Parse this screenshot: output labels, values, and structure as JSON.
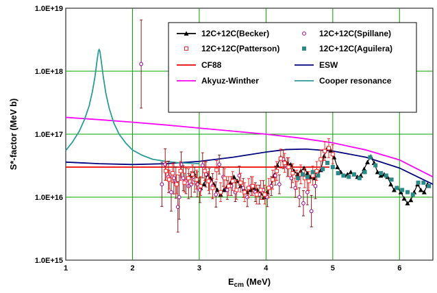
{
  "chart_data": {
    "type": "scatter",
    "xlabel_main": "E",
    "xlabel_sub": "cm",
    "xlabel_tail": " (MeV)",
    "ylabel": "S*-factor (MeV b)",
    "xlim": [
      1,
      6.5
    ],
    "ylim": [
      1000000000000000.0,
      1e+19
    ],
    "y_scale": "log",
    "grid": true,
    "legend_position": "top-right",
    "x_ticks": [
      "1",
      "2",
      "3",
      "4",
      "5",
      "6"
    ],
    "y_ticks": [
      "1.0E+15",
      "1.0E+16",
      "1.0E+17",
      "1.0E+18",
      "1.0E+19"
    ],
    "colors": {
      "becker": "#000000",
      "spillane": "#990099",
      "patterson": "#ff2222",
      "aguilera": "#2a8a8a",
      "cf88": "#ee0000",
      "esw": "#00007f",
      "akyuz": "#ff00ff",
      "cooper": "#2a9a9a",
      "grid": "#00a000"
    },
    "series": [
      {
        "name": "12C+12C(Becker)",
        "kind": "line-markers",
        "color_key": "becker",
        "marker": "triangle",
        "x": [
          2.87,
          2.92,
          2.97,
          3.02,
          3.07,
          3.12,
          3.17,
          3.22,
          3.27,
          3.32,
          3.37,
          3.42,
          3.47,
          3.52,
          3.57,
          3.62,
          3.67,
          3.72,
          3.77,
          3.82,
          3.87,
          3.92,
          3.97,
          4.02,
          4.07,
          4.12,
          4.17,
          4.22,
          4.27,
          4.32,
          4.37,
          4.42,
          4.47,
          4.52,
          4.57,
          4.62,
          4.67,
          4.72,
          4.77,
          4.82,
          4.87,
          4.92,
          4.97,
          5.02,
          5.07,
          5.12,
          5.17,
          5.22,
          5.27,
          5.32,
          5.37,
          5.42,
          5.47,
          5.52,
          5.57,
          5.62,
          5.67,
          5.72,
          5.77,
          5.82,
          5.87,
          5.92,
          5.97,
          6.02,
          6.07,
          6.12,
          6.17,
          6.22,
          6.27,
          6.32,
          6.37,
          6.42
        ],
        "y": [
          2.2e+16,
          2.4e+16,
          1.9e+16,
          1.4e+16,
          1.6e+16,
          2.3e+16,
          2e+16,
          1.6e+16,
          1.3e+16,
          1.1e+16,
          1.3e+16,
          1.5e+16,
          1.7e+16,
          2.1e+16,
          1.8e+16,
          1.5e+16,
          1.35e+16,
          1.2e+16,
          1.3e+16,
          1.4e+16,
          1.3e+16,
          1.15e+16,
          1e+16,
          1.2e+16,
          1.5e+16,
          2.2e+16,
          3.2e+16,
          4.3e+16,
          3.9e+16,
          3.5e+16,
          3.3e+16,
          2.6e+16,
          2.3e+16,
          2.6e+16,
          2.9e+16,
          2.4e+16,
          2.1e+16,
          2e+16,
          2.2e+16,
          2.7e+16,
          4.5e+16,
          6e+16,
          5.5e+16,
          4.3e+16,
          3e+16,
          2.5e+16,
          2.2e+16,
          2.3e+16,
          2.5e+16,
          2.3e+16,
          2.1e+16,
          2.2e+16,
          2.8e+16,
          3.6e+16,
          4.4e+16,
          3.5e+16,
          2.5e+16,
          2.2e+16,
          2.3e+16,
          2.1e+16,
          1.6e+16,
          1.3e+16,
          1.4e+16,
          1.2e+16,
          9500000000000000.0,
          8000000000000000.0,
          9000000000000000.0,
          1.2e+16,
          1.6e+16,
          1.3e+16,
          1.2e+16,
          1.6e+16
        ]
      },
      {
        "name": "12C+12C(Spillane)",
        "kind": "markers-errorbars",
        "color_key": "spillane",
        "marker": "circle",
        "x": [
          2.13,
          2.44,
          2.49,
          2.54,
          2.58,
          2.62,
          2.65,
          2.68,
          2.7,
          2.73,
          2.76,
          2.8,
          2.84,
          2.88,
          2.93,
          2.97,
          3.01,
          3.05,
          3.1,
          3.15,
          3.2,
          3.25,
          3.3,
          3.36,
          3.42,
          3.48,
          3.54,
          3.6,
          3.66,
          3.72,
          3.78,
          3.84,
          3.9,
          3.96,
          4.02,
          4.08,
          4.14,
          4.2,
          4.26,
          4.32,
          4.38,
          4.44,
          4.5,
          4.56,
          4.62,
          4.68,
          4.74
        ],
        "y": [
          1.3e+18,
          1.6e+16,
          3.3e+16,
          2.1e+16,
          1.2e+16,
          2e+16,
          1.7e+16,
          7000000000000000.0,
          1e+16,
          3.3e+16,
          2e+16,
          1.8e+16,
          1.5e+16,
          1.6e+16,
          1.9e+16,
          1.6e+16,
          1.3e+16,
          3.2e+16,
          2.3e+16,
          1.8e+16,
          1.5e+16,
          1.1e+16,
          3.3e+16,
          2.1e+16,
          1.3e+16,
          1.5e+16,
          1.2e+16,
          2.2e+16,
          1.4e+16,
          1e+16,
          1.5e+16,
          1.2e+16,
          1.1e+16,
          1.3e+16,
          1e+16,
          1.5e+16,
          2.2e+16,
          1.6e+16,
          4e+16,
          3e+16,
          2e+16,
          1.4e+16,
          1e+16,
          8000000000000000.0,
          1.2e+16,
          6000000000000000.0,
          1.5e+16
        ],
        "errors": [
          0.7,
          0.35,
          0.25,
          0.25,
          0.3,
          0.25,
          0.25,
          0.4,
          0.35,
          0.2,
          0.2,
          0.2,
          0.2,
          0.2,
          0.2,
          0.2,
          0.2,
          0.2,
          0.2,
          0.2,
          0.2,
          0.2,
          0.15,
          0.15,
          0.15,
          0.15,
          0.15,
          0.15,
          0.15,
          0.15,
          0.15,
          0.15,
          0.15,
          0.15,
          0.15,
          0.15,
          0.15,
          0.15,
          0.15,
          0.15,
          0.15,
          0.15,
          0.15,
          0.2,
          0.2,
          0.25,
          0.2
        ]
      },
      {
        "name": "12C+12C(Patterson)",
        "kind": "markers-errorbars",
        "color_key": "patterson",
        "marker": "square-open",
        "x": [
          2.5,
          2.55,
          2.6,
          2.66,
          2.72,
          2.78,
          2.84,
          2.9,
          2.96,
          3.02,
          3.08,
          3.14,
          3.2,
          3.26,
          3.32,
          3.38,
          3.44,
          3.5,
          3.56,
          3.62,
          3.68,
          3.74,
          3.8,
          3.86,
          3.92,
          3.98,
          4.04,
          4.1,
          4.16,
          4.22,
          4.28,
          4.34,
          4.4,
          4.46,
          4.52,
          4.58,
          4.64,
          4.7,
          4.76,
          4.82,
          4.88,
          4.94,
          5.0
        ],
        "y": [
          2.6e+16,
          1.9e+16,
          2.4e+16,
          1.6e+16,
          2.6e+16,
          1.7e+16,
          2e+16,
          2.3e+16,
          1.9e+16,
          1.5e+16,
          2.6e+16,
          1.8e+16,
          1.4e+16,
          2.7e+16,
          1.2e+16,
          2e+16,
          1.5e+16,
          1.8e+16,
          1.3e+16,
          1.7e+16,
          1.2e+16,
          1.4e+16,
          1.5e+16,
          1.1e+16,
          1.3e+16,
          1.1e+16,
          1.4e+16,
          1.9e+16,
          2.6e+16,
          4.1e+16,
          3.5e+16,
          3e+16,
          2.4e+16,
          1.9e+16,
          2.3e+16,
          2e+16,
          1.8e+16,
          2.2e+16,
          2.6e+16,
          4e+16,
          5.4e+16,
          6e+16,
          4.8e+16
        ],
        "errors": [
          0.15,
          0.15,
          0.15,
          0.15,
          0.15,
          0.15,
          0.15,
          0.15,
          0.15,
          0.15,
          0.15,
          0.15,
          0.15,
          0.15,
          0.15,
          0.15,
          0.15,
          0.15,
          0.15,
          0.15,
          0.15,
          0.15,
          0.15,
          0.15,
          0.15,
          0.15,
          0.15,
          0.15,
          0.15,
          0.15,
          0.15,
          0.15,
          0.15,
          0.15,
          0.15,
          0.15,
          0.15,
          0.15,
          0.15,
          0.15,
          0.15,
          0.15,
          0.15
        ]
      },
      {
        "name": "12C+12C(Aguilera)",
        "kind": "markers",
        "color_key": "aguilera",
        "marker": "square-filled",
        "x": [
          4.48,
          4.55,
          4.62,
          4.7,
          4.78,
          4.85,
          4.92,
          5.0,
          5.08,
          5.16,
          5.24,
          5.32,
          5.4,
          5.48,
          5.56,
          5.64,
          5.72,
          5.8,
          5.88,
          5.96,
          6.04,
          6.12,
          6.2,
          6.28,
          6.36,
          6.44
        ],
        "y": [
          2e+16,
          2.3e+16,
          2.1e+16,
          2.5e+16,
          2.2e+16,
          2.8e+16,
          3.5e+16,
          3e+16,
          2.4e+16,
          2.2e+16,
          2.1e+16,
          2.3e+16,
          2e+16,
          2.5e+16,
          4.3e+16,
          3.2e+16,
          2.4e+16,
          2.2e+16,
          1.9e+16,
          1.4e+16,
          1.3e+16,
          1.2e+16,
          1.1e+16,
          1.7e+16,
          1.7e+16,
          1.5e+16
        ]
      },
      {
        "name": "CF88",
        "kind": "line",
        "color_key": "cf88",
        "x": [
          1.0,
          2.0,
          3.0,
          4.0,
          4.95
        ],
        "y": [
          3e+16,
          3e+16,
          3e+16,
          3e+16,
          3e+16
        ]
      },
      {
        "name": "ESW",
        "kind": "line",
        "color_key": "esw",
        "x": [
          1.0,
          1.5,
          2.0,
          2.5,
          3.0,
          3.5,
          4.0,
          4.3,
          4.6,
          5.0,
          5.5,
          6.0,
          6.5
        ],
        "y": [
          3.6e+16,
          3.4e+16,
          3.3e+16,
          3.4e+16,
          3.7e+16,
          4.3e+16,
          5.2e+16,
          5.7e+16,
          5.8e+16,
          5.4e+16,
          4.3e+16,
          2.9e+16,
          1.6e+16
        ]
      },
      {
        "name": "Akyuz-Winther",
        "kind": "line",
        "color_key": "akyuz",
        "x": [
          1.0,
          1.5,
          2.0,
          2.5,
          3.0,
          3.5,
          4.0,
          4.5,
          5.0,
          5.5,
          6.0,
          6.5
        ],
        "y": [
          1.85e+17,
          1.7e+17,
          1.55e+17,
          1.4e+17,
          1.25e+17,
          1.12e+17,
          1e+17,
          8.7e+16,
          7.3e+16,
          5.6e+16,
          3.9e+16,
          2.1e+16
        ]
      },
      {
        "name": "Cooper resonance",
        "kind": "line",
        "color_key": "cooper",
        "x": [
          1.0,
          1.1,
          1.2,
          1.28,
          1.35,
          1.4,
          1.44,
          1.47,
          1.49,
          1.5,
          1.51,
          1.53,
          1.56,
          1.6,
          1.65,
          1.72,
          1.8,
          1.9,
          2.0,
          2.15,
          2.3,
          2.5,
          2.7,
          2.9,
          3.0
        ],
        "y": [
          5.5e+16,
          7.5e+16,
          1.1e+17,
          1.7e+17,
          2.8e+17,
          4.8e+17,
          8.5e+17,
          1.5e+18,
          2.1e+18,
          2.2e+18,
          2.1e+18,
          1.5e+18,
          8.5e+17,
          4.5e+17,
          2.6e+17,
          1.5e+17,
          1e+17,
          7.2e+16,
          5.6e+16,
          4.6e+16,
          4e+16,
          3.7e+16,
          3.5e+16,
          3.45e+16,
          3.4e+16
        ]
      }
    ]
  }
}
